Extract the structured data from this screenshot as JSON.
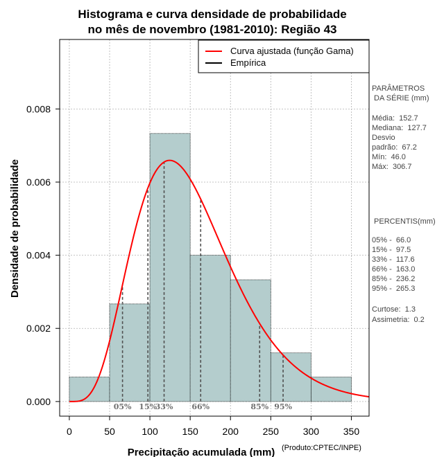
{
  "chart_data": {
    "type": "bar",
    "title_line1": "Histograma e curva densidade de probabilidade",
    "title_line2": "no mês de novembro (1981-2010): Região 43",
    "xlabel": "Precipitação acumulada (mm)",
    "ylabel": "Densidade de probabilidade",
    "credit": "(Produto:CPTEC/INPE)",
    "xlim": [
      -12,
      372
    ],
    "ylim": [
      -0.0004,
      0.0099
    ],
    "x_ticks": [
      0,
      50,
      100,
      150,
      200,
      250,
      300,
      350
    ],
    "y_ticks": [
      0.0,
      0.002,
      0.004,
      0.006,
      0.008
    ],
    "y_tick_labels": [
      "0.000",
      "0.002",
      "0.004",
      "0.006",
      "0.008"
    ],
    "grid": true,
    "bins": [
      {
        "from": 0,
        "to": 50,
        "density": 0.00067
      },
      {
        "from": 50,
        "to": 100,
        "density": 0.00267
      },
      {
        "from": 100,
        "to": 150,
        "density": 0.00733
      },
      {
        "from": 150,
        "to": 200,
        "density": 0.004
      },
      {
        "from": 200,
        "to": 250,
        "density": 0.00333
      },
      {
        "from": 250,
        "to": 300,
        "density": 0.00133
      },
      {
        "from": 300,
        "to": 350,
        "density": 0.00067
      }
    ],
    "gamma_fit": {
      "shape": 5.4,
      "scale": 28.3
    },
    "percentile_lines": [
      {
        "label": "05%",
        "value": 66.0
      },
      {
        "label": "15%",
        "value": 97.5
      },
      {
        "label": "33%",
        "value": 117.6
      },
      {
        "label": "66%",
        "value": 163.0
      },
      {
        "label": "85%",
        "value": 236.2
      },
      {
        "label": "95%",
        "value": 265.3
      }
    ],
    "legend": [
      {
        "label": "Curva ajustada (função Gama)",
        "color": "#ff0000"
      },
      {
        "label": "Empírica",
        "color": "#000000"
      }
    ],
    "legend_position": "top-right",
    "colors": {
      "bar_fill": "#b4cdcd",
      "curve": "#ff0000",
      "percentile_line": "#505050",
      "grid": "#b0b0b0"
    }
  },
  "side_panel": {
    "params_title_1": "PARÂMETROS",
    "params_title_2": " DA SÉRIE (mm)",
    "media": "Média:  152.7",
    "mediana": "Mediana:  127.7",
    "desvio_1": "Desvio",
    "desvio_2": "padrão:  67.2",
    "min": "Mín:  46.0",
    "max": "Máx:  306.7",
    "percentis_title": " PERCENTIS(mm)",
    "p05": "05% -  66.0",
    "p15": "15% -  97.5",
    "p33": "33% -  117.6",
    "p66": "66% -  163.0",
    "p85": "85% -  236.2",
    "p95": "95% -  265.3",
    "curtose": "Curtose:  1.3",
    "assimetria": "Assimetria:  0.2"
  }
}
